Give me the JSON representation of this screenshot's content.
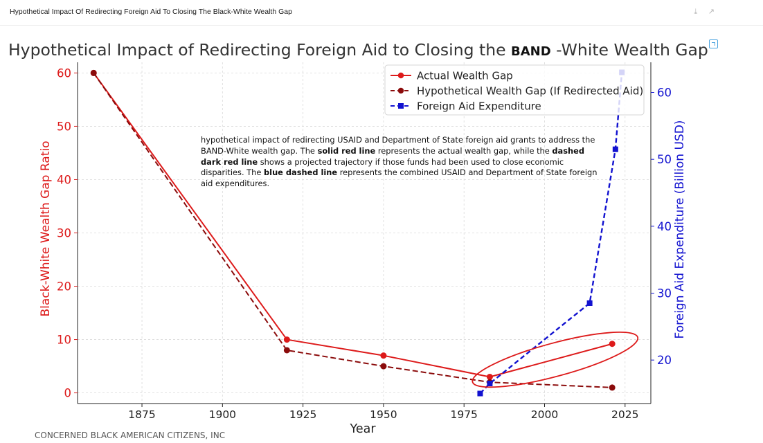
{
  "window": {
    "title": "Hypothetical Impact Of Redirecting Foreign Aid To Closing The Black-White Wealth Gap",
    "controls_icon": "download-and-expand-icons"
  },
  "footer": {
    "credit": "CONCERNED BLACK AMERICAN CITIZENS, INC"
  },
  "annotation": {
    "part1": "hypothetical impact of redirecting USAID and Department of State foreign aid grants to address the BAND-White wealth gap. The ",
    "bold1": "solid red line",
    "part2": " represents the actual wealth gap, while the ",
    "bold2": "dashed dark red line",
    "part3": " shows a projected trajectory if those funds had been used to close economic disparities. The ",
    "bold3": "blue dashed line",
    "part4": " represents the combined USAID and Department of State foreign aid expenditures."
  },
  "chart_data": {
    "type": "line",
    "title_prefix": "Hypothetical Impact of Redirecting Foreign Aid to Closing the ",
    "title_bold": "BAND",
    "title_suffix": " -White Wealth Gap",
    "xlabel": "Year",
    "ylabel_left": "Black-White Wealth Gap Ratio",
    "ylabel_right": "Foreign Aid Expenditure (Billion USD)",
    "xlim": [
      1855,
      2033
    ],
    "ylim_left": [
      -2,
      62
    ],
    "ylim_right": [
      13.5,
      64.5
    ],
    "xticks": [
      1875,
      1900,
      1925,
      1950,
      1975,
      2000,
      2025
    ],
    "yticks_left": [
      0,
      10,
      20,
      30,
      40,
      50,
      60
    ],
    "yticks_right": [
      20,
      30,
      40,
      50,
      60
    ],
    "grid": true,
    "legend_position": "top-right",
    "colors": {
      "actual": "#dd1a1a",
      "hypothetical": "#8b0b0b",
      "aid": "#1212d0",
      "left_axis": "#dd1a1a",
      "right_axis": "#1212d0",
      "ellipse": "#dd1a1a"
    },
    "series": [
      {
        "name": "Actual Wealth Gap",
        "axis": "left",
        "style": "solid",
        "marker": "circle",
        "x": [
          1860,
          1920,
          1950,
          1983,
          2021
        ],
        "y": [
          60,
          10,
          7,
          3,
          9.2
        ]
      },
      {
        "name": "Hypothetical Wealth Gap (If Redirected Aid)",
        "axis": "left",
        "style": "dashed",
        "marker": "circle",
        "x": [
          1860,
          1920,
          1950,
          1983,
          2021
        ],
        "y": [
          60,
          8,
          5,
          2,
          1
        ]
      },
      {
        "name": "Foreign Aid Expenditure",
        "axis": "right",
        "style": "dashed",
        "marker": "square",
        "x": [
          1980,
          1983,
          2014,
          2022,
          2024
        ],
        "y": [
          15,
          16.5,
          28.5,
          51.5,
          63
        ]
      }
    ],
    "highlight": {
      "shape": "ellipse",
      "around": "1983-2022 data points"
    }
  }
}
